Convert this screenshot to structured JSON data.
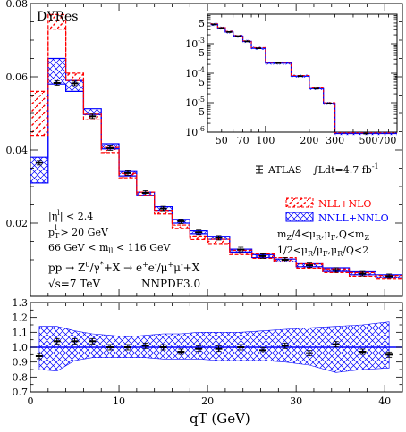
{
  "chart_data": [
    {
      "type": "step",
      "panel": "main",
      "title": "DYRes",
      "xlabel": "qT (GeV)",
      "xlim": [
        0,
        42
      ],
      "ylim": [
        0,
        0.08
      ],
      "yticks": [
        "0.02",
        "0.04",
        "0.06",
        "0.08"
      ],
      "xticks": [
        "0",
        "10",
        "20",
        "30",
        "40"
      ],
      "bin_edges": [
        0,
        2,
        4,
        6,
        8,
        10,
        12,
        14,
        16,
        18,
        20,
        22.5,
        25,
        27.5,
        30,
        33,
        36,
        39,
        42
      ],
      "series": [
        {
          "name": "ATLAS",
          "values": [
            0.0365,
            0.0583,
            0.0582,
            0.0492,
            0.0405,
            0.0337,
            0.0283,
            0.024,
            0.0205,
            0.0175,
            0.016,
            0.0128,
            0.011,
            0.01,
            0.0085,
            0.0072,
            0.0062,
            0.0055
          ]
        },
        {
          "name": "NLL+NLO",
          "values": [
            0.05,
            0.075,
            0.06,
            0.049,
            0.04,
            0.033,
            0.028,
            0.023,
            0.019,
            0.016,
            0.015,
            0.012,
            0.011,
            0.01,
            0.0083,
            0.007,
            0.006,
            0.0052
          ],
          "band_halfwidth": [
            0.006,
            0.002,
            0.001,
            0.0008,
            0.0007,
            0.0006,
            0.0005,
            0.0005,
            0.0005,
            0.0005,
            0.0006,
            0.0006,
            0.0006,
            0.0006,
            0.0006,
            0.0005,
            0.0005,
            0.0005
          ]
        },
        {
          "name": "NNLL+NNLO",
          "values": [
            0.0345,
            0.0615,
            0.0575,
            0.0505,
            0.041,
            0.0335,
            0.028,
            0.024,
            0.0205,
            0.0175,
            0.016,
            0.0125,
            0.011,
            0.0098,
            0.0085,
            0.0073,
            0.0063,
            0.0055
          ],
          "band_halfwidth": [
            0.0035,
            0.0035,
            0.0015,
            0.0008,
            0.0007,
            0.0006,
            0.0005,
            0.0005,
            0.0005,
            0.0004,
            0.0004,
            0.0004,
            0.0004,
            0.0004,
            0.0004,
            0.0005,
            0.0004,
            0.0004
          ]
        }
      ]
    },
    {
      "type": "step",
      "panel": "inset",
      "scale": "log-log",
      "xlim": [
        40,
        800
      ],
      "ylim": [
        1e-06,
        0.01
      ],
      "xticks": [
        "50",
        "70",
        "100",
        "200",
        "300",
        "500700"
      ],
      "yticks": [
        "10^-6",
        "10^-5",
        "10^-4",
        "10^-3"
      ],
      "bin_edges": [
        42,
        47,
        53,
        60,
        70,
        80,
        100,
        150,
        200,
        250,
        300,
        800
      ],
      "series": [
        {
          "name": "ATLAS",
          "values": [
            0.0045,
            0.0034,
            0.0025,
            0.0018,
            0.0012,
            0.0007,
            0.00022,
            8e-05,
            3e-05,
            9.5e-06,
            9e-07
          ]
        },
        {
          "name": "NLL+NLO",
          "values": [
            0.0045,
            0.0034,
            0.0025,
            0.0018,
            0.0012,
            0.0007,
            0.00022,
            8e-05,
            3e-05,
            9.5e-06,
            9e-07
          ]
        },
        {
          "name": "NNLL+NNLO",
          "values": [
            0.0045,
            0.0034,
            0.0025,
            0.0018,
            0.0012,
            0.0007,
            0.00022,
            8e-05,
            3e-05,
            9.5e-06,
            9e-07
          ]
        }
      ]
    },
    {
      "type": "ratio",
      "panel": "ratio",
      "xlim": [
        0,
        42
      ],
      "ylim": [
        0.7,
        1.3
      ],
      "yticks": [
        "0.7",
        "0.8",
        "0.9",
        "1.0",
        "1.1",
        "1.2",
        "1.3"
      ],
      "xticks": [
        "0",
        "10",
        "20",
        "30",
        "40"
      ],
      "reference": 1.0,
      "points_x": [
        1,
        3,
        5,
        7,
        9,
        11,
        13,
        15,
        17,
        19,
        21.25,
        23.75,
        26.25,
        28.75,
        31.5,
        34.5,
        37.5,
        40.5
      ],
      "points_y": [
        0.94,
        1.04,
        1.04,
        1.04,
        1.0,
        1.0,
        1.01,
        1.0,
        0.97,
        0.99,
        0.99,
        1.0,
        0.98,
        1.01,
        0.96,
        1.02,
        0.97,
        0.95
      ],
      "band_lo": [
        0.85,
        0.84,
        0.91,
        0.93,
        0.93,
        0.93,
        0.93,
        0.92,
        0.92,
        0.92,
        0.91,
        0.91,
        0.91,
        0.9,
        0.88,
        0.83,
        0.85,
        0.86
      ],
      "band_hi": [
        1.14,
        1.14,
        1.11,
        1.09,
        1.08,
        1.07,
        1.08,
        1.09,
        1.09,
        1.1,
        1.1,
        1.1,
        1.11,
        1.12,
        1.13,
        1.14,
        1.15,
        1.17
      ]
    }
  ],
  "legend": {
    "atlas_label": "ATLAS",
    "lumi_label": "∫Ldt=4.7 fb",
    "lumi_exp": "-1",
    "nll": "NLL+NLO",
    "nnll": "NNLL+NNLO"
  },
  "annotations": {
    "scale1": "m",
    "scale1_sub": "Z",
    "scale1_rest": "/4<μ",
    "scale1_sub2": "R",
    "scale1_rest2": ",μ",
    "scale1_sub3": "F",
    "scale1_rest3": ",Q<m",
    "scale1_sub4": "Z",
    "scale2": "1/2<μ",
    "scale2_sub": "R",
    "scale2_rest": "/μ",
    "scale2_sub2": "F",
    "scale2_rest2": ",μ",
    "scale2_sub3": "R",
    "scale2_rest3": "/Q<2",
    "eta_cut": "|η",
    "eta_sup": "l",
    "eta_rest": "| < 2.4",
    "pt_cut": "p",
    "pt_sub": "T",
    "pt_sup": "l",
    "pt_rest": " > 20 GeV",
    "mass_cut": "66 GeV < m",
    "mass_sub": "ll",
    "mass_rest": " < 116 GeV",
    "process": "pp → Z",
    "process_sup1": "0",
    "process_mid": "/γ",
    "process_sup2": "*",
    "process_rest": "+X → e",
    "process_sup3": "+",
    "process_e2": "e",
    "process_sup4": "-",
    "process_mu": "/μ",
    "process_sup5": "+",
    "process_mu2": "μ",
    "process_sup6": "-",
    "process_end": "+X",
    "energy": "√s=7 TeV",
    "pdf": "NNPDF3.0"
  },
  "colors": {
    "nll": "#ff0000",
    "nnll": "#0000ff",
    "data": "#000000"
  }
}
